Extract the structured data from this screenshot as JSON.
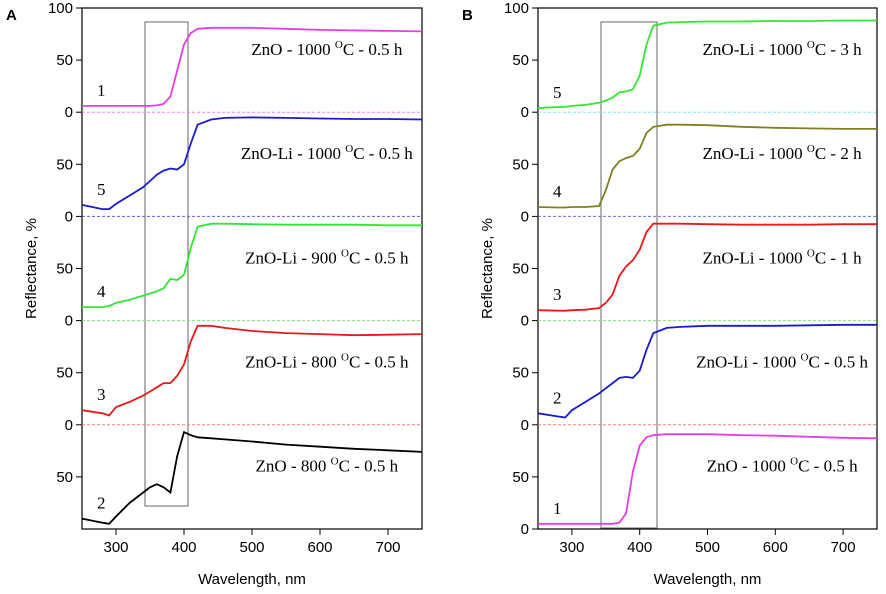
{
  "chart_data": [
    {
      "type": "line",
      "panel": "A",
      "xlabel": "Wavelength, nm",
      "ylabel": "Reflectance, %",
      "x": [
        250,
        280,
        290,
        300,
        320,
        340,
        350,
        360,
        370,
        380,
        390,
        400,
        410,
        420,
        440,
        460,
        500,
        550,
        600,
        650,
        700,
        750
      ],
      "xlim": [
        250,
        750
      ],
      "xticks": [
        300,
        400,
        500,
        600,
        700
      ],
      "series": [
        {
          "number": "1",
          "label_pre": "ZnO - 1000 ",
          "label_sup": "O",
          "label_post": "C - 0.5 h",
          "color": "#e63ee6",
          "baseline_color": "#f080f0",
          "ylim": [
            0,
            100
          ],
          "yticks": [
            0,
            50,
            100
          ],
          "values": [
            6,
            6,
            6,
            6,
            6,
            6,
            6,
            6.5,
            8,
            15,
            40,
            65,
            76,
            80,
            81,
            81,
            81,
            80,
            79,
            78.5,
            78,
            77.5
          ]
        },
        {
          "number": "5",
          "label_pre": "ZnO-Li - 1000 ",
          "label_sup": "O",
          "label_post": "C - 0.5 h",
          "color": "#1a1acc",
          "baseline_color": "#6060d0",
          "ylim": [
            0,
            100
          ],
          "yticks": [
            0,
            50
          ],
          "values": [
            11,
            7,
            7,
            12,
            20,
            28,
            34,
            40,
            44,
            46,
            45,
            50,
            70,
            88,
            93,
            94.5,
            95,
            94.5,
            94,
            93.5,
            93.5,
            93
          ]
        },
        {
          "number": "4",
          "label_pre": "ZnO-Li - 900 ",
          "label_sup": "O",
          "label_post": "C - 0.5 h",
          "color": "#33e633",
          "baseline_color": "#80e080",
          "ylim": [
            0,
            100
          ],
          "yticks": [
            0,
            50
          ],
          "values": [
            13,
            13,
            14,
            17,
            20,
            24,
            26,
            28,
            31,
            40,
            39,
            44,
            70,
            90,
            93,
            93,
            92.5,
            92,
            92,
            92,
            91.5,
            91.5
          ]
        },
        {
          "number": "3",
          "label_pre": "ZnO-Li - 800 ",
          "label_sup": "O",
          "label_post": "C - 0.5 h",
          "color": "#e61a1a",
          "baseline_color": "#f08080",
          "ylim": [
            0,
            100
          ],
          "yticks": [
            0,
            50
          ],
          "values": [
            14,
            11,
            9,
            17,
            22,
            28,
            32,
            36,
            40,
            40,
            47,
            58,
            80,
            95,
            95,
            93,
            90,
            88,
            87,
            86,
            86.5,
            87
          ]
        },
        {
          "number": "2",
          "label_pre": "ZnO - 800 ",
          "label_sup": "O",
          "label_post": "C - 0.5 h",
          "color": "#000000",
          "ylim": [
            0,
            100
          ],
          "yticks": [
            50
          ],
          "values": [
            10,
            6,
            5,
            12,
            25,
            35,
            40,
            43,
            40,
            35,
            70,
            93,
            90,
            88,
            87,
            86,
            84,
            81,
            79,
            77,
            75.5,
            74
          ]
        }
      ]
    },
    {
      "type": "line",
      "panel": "B",
      "xlabel": "Wavelength, nm",
      "ylabel": "Reflectance, %",
      "x": [
        250,
        280,
        290,
        300,
        320,
        340,
        350,
        360,
        370,
        380,
        390,
        400,
        410,
        420,
        440,
        460,
        500,
        550,
        600,
        650,
        700,
        750
      ],
      "xlim": [
        250,
        750
      ],
      "xticks": [
        300,
        400,
        500,
        600,
        700
      ],
      "series": [
        {
          "number": "5",
          "label_pre": "ZnO-Li - 1000 ",
          "label_sup": "O",
          "label_post": "C - 3 h",
          "color": "#33e633",
          "baseline_color": "#80e8f0",
          "ylim": [
            0,
            100
          ],
          "yticks": [
            0,
            50,
            100
          ],
          "values": [
            4,
            5,
            5,
            6,
            7,
            9,
            11,
            14,
            19,
            20,
            22,
            35,
            65,
            83,
            86,
            86.5,
            87,
            87,
            87.5,
            87.5,
            88,
            88
          ]
        },
        {
          "number": "4",
          "label_pre": "ZnO-Li - 1000 ",
          "label_sup": "O",
          "label_post": "C - 2 h",
          "color": "#808020",
          "baseline_color": "#7070d0",
          "ylim": [
            0,
            100
          ],
          "yticks": [
            0,
            50
          ],
          "values": [
            9,
            8.5,
            8.5,
            9,
            9,
            10,
            25,
            45,
            53,
            56,
            58,
            65,
            80,
            86,
            88,
            88,
            87.5,
            86,
            85,
            84.5,
            84,
            84
          ]
        },
        {
          "number": "3",
          "label_pre": "ZnO-Li - 1000 ",
          "label_sup": "O",
          "label_post": "C - 1 h",
          "color": "#e61a1a",
          "baseline_color": "#80e080",
          "ylim": [
            0,
            100
          ],
          "yticks": [
            0,
            50
          ],
          "values": [
            10,
            9.5,
            9.5,
            10,
            10.5,
            12,
            17,
            25,
            43,
            52,
            58,
            68,
            85,
            93,
            93,
            93,
            92.5,
            92,
            92,
            92,
            92.5,
            92.5
          ]
        },
        {
          "number": "2",
          "label_pre": "ZnO-Li - 1000 ",
          "label_sup": "O",
          "label_post": "C - 0.5 h",
          "color": "#1a1acc",
          "baseline_color": "#f08080",
          "ylim": [
            0,
            100
          ],
          "yticks": [
            0,
            50
          ],
          "values": [
            11,
            8,
            7,
            14,
            22,
            30,
            35,
            40,
            45,
            46,
            45,
            52,
            72,
            88,
            93,
            94,
            95,
            95,
            95,
            95.5,
            96,
            96
          ]
        },
        {
          "number": "1",
          "label_pre": "ZnO - 1000 ",
          "label_sup": "O",
          "label_post": "C - 0.5 h",
          "color": "#e63ee6",
          "ylim": [
            0,
            100
          ],
          "yticks": [
            0,
            50
          ],
          "values": [
            5,
            5,
            5,
            5,
            5,
            5,
            5,
            5,
            6,
            15,
            55,
            80,
            88,
            90,
            91,
            91,
            91,
            90,
            89.5,
            88.5,
            87.5,
            87
          ]
        }
      ]
    }
  ]
}
